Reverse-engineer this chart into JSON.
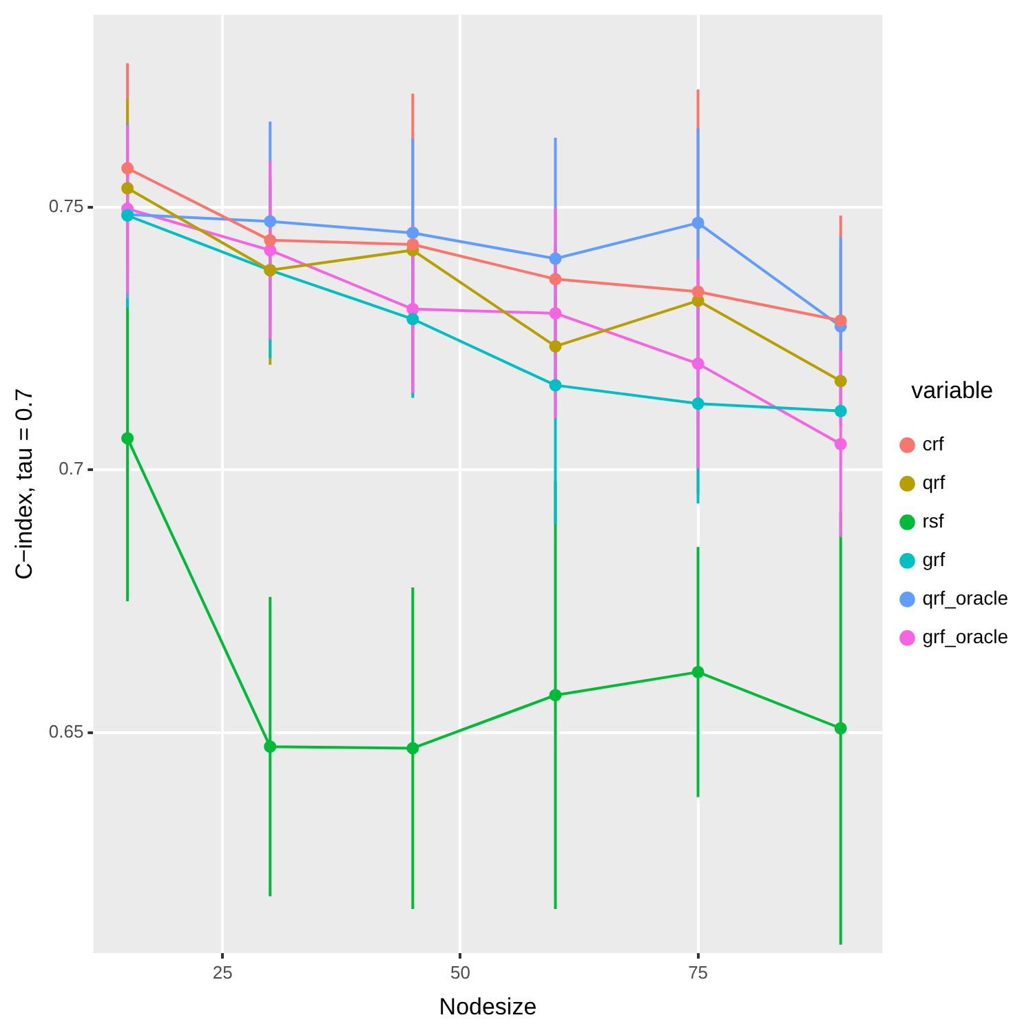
{
  "chart_data": {
    "type": "line",
    "xlabel": "Nodesize",
    "ylabel": "C−index, tau = 0.7",
    "legend_title": "variable",
    "legend": "right",
    "grid": true,
    "marker": "circle",
    "line_style": "solid",
    "x": [
      15,
      30,
      45,
      60,
      75,
      90
    ],
    "xlim": [
      11.4,
      94.4
    ],
    "xticks": [
      25,
      50,
      75
    ],
    "ylim": [
      0.608,
      0.7866
    ],
    "yticks": [
      0.65,
      0.7,
      0.75
    ],
    "series": [
      {
        "name": "crf",
        "color": "#f8766d",
        "values": [
          0.7574,
          0.7437,
          0.7429,
          0.7363,
          0.7339,
          0.7284
        ],
        "errors": [
          0.02,
          null,
          0.0287,
          null,
          0.0385,
          0.02
        ]
      },
      {
        "name": "qrf",
        "color": "#b79f00",
        "values": [
          0.7536,
          0.738,
          0.7418,
          0.7235,
          0.7322,
          0.7169
        ],
        "errors": [
          0.017,
          0.018,
          null,
          null,
          null,
          null
        ]
      },
      {
        "name": "rsf",
        "color": "#00ba38",
        "values": [
          0.706,
          0.6473,
          0.647,
          0.6571,
          0.6615,
          0.6508
        ],
        "errors": [
          0.031,
          0.0285,
          0.0306,
          0.0407,
          0.0238,
          0.0412
        ]
      },
      {
        "name": "grf",
        "color": "#00bfc4",
        "values": [
          0.7484,
          0.738,
          0.7287,
          0.7161,
          0.7126,
          0.7112
        ],
        "errors": [
          0.0175,
          0.0167,
          0.015,
          0.0265,
          0.019,
          null
        ]
      },
      {
        "name": "qrf_oracle",
        "color": "#619cff",
        "values": [
          0.7486,
          0.7473,
          0.7451,
          0.7402,
          0.747,
          0.7273
        ],
        "errors": [
          0.016,
          0.019,
          0.018,
          0.023,
          0.018,
          0.017
        ]
      },
      {
        "name": "grf_oracle",
        "color": "#f564e3",
        "values": [
          0.7497,
          0.7418,
          0.7306,
          0.7298,
          0.7202,
          0.7049
        ],
        "errors": [
          0.016,
          0.017,
          0.016,
          0.02,
          0.02,
          0.0177
        ]
      }
    ]
  }
}
